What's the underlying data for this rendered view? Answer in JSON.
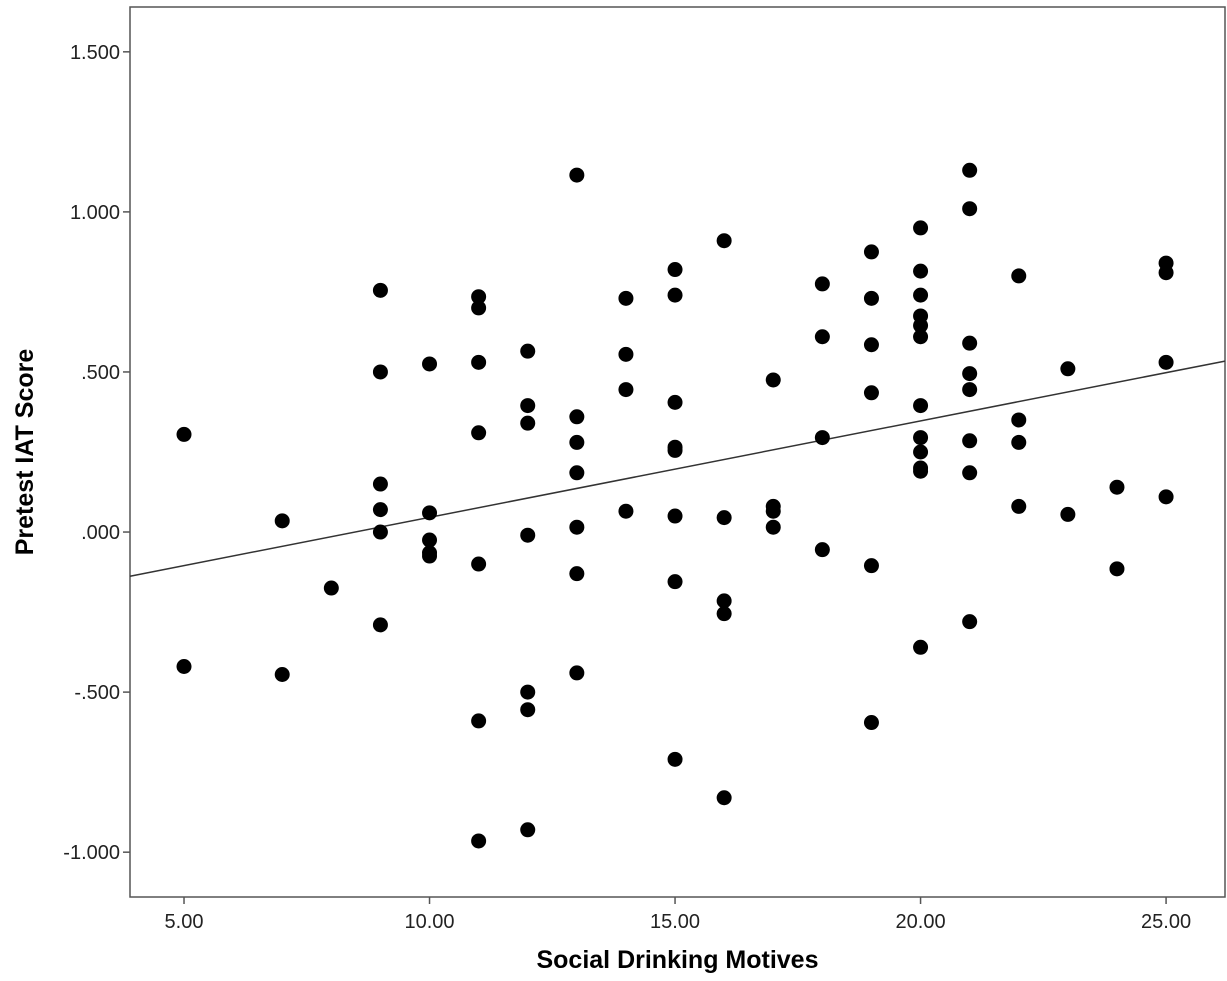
{
  "chart_data": {
    "type": "scatter",
    "title": "",
    "xlabel": "Social Drinking Motives",
    "ylabel": "Pretest IAT Score",
    "xlim": [
      3.9,
      26.2
    ],
    "ylim": [
      -1.14,
      1.64
    ],
    "x_ticks": [
      {
        "value": 5,
        "label": "5.00"
      },
      {
        "value": 10,
        "label": "10.00"
      },
      {
        "value": 15,
        "label": "15.00"
      },
      {
        "value": 20,
        "label": "20.00"
      },
      {
        "value": 25,
        "label": "25.00"
      }
    ],
    "y_ticks": [
      {
        "value": 1.5,
        "label": "1.500"
      },
      {
        "value": 1.0,
        "label": "1.000"
      },
      {
        "value": 0.5,
        "label": ".500"
      },
      {
        "value": 0.0,
        "label": ".000"
      },
      {
        "value": -0.5,
        "label": "-.500"
      },
      {
        "value": -1.0,
        "label": "-1.000"
      }
    ],
    "grid": false,
    "legend": "none",
    "points": [
      [
        5,
        0.305
      ],
      [
        5,
        -0.42
      ],
      [
        7,
        0.035
      ],
      [
        7,
        -0.445
      ],
      [
        8,
        -0.175
      ],
      [
        9,
        0.755
      ],
      [
        9,
        0.5
      ],
      [
        9,
        0.15
      ],
      [
        9,
        0.07
      ],
      [
        9,
        0.0
      ],
      [
        9,
        -0.29
      ],
      [
        10,
        0.525
      ],
      [
        10,
        0.06
      ],
      [
        10,
        -0.025
      ],
      [
        10,
        -0.065
      ],
      [
        10,
        -0.075
      ],
      [
        11,
        0.735
      ],
      [
        11,
        0.7
      ],
      [
        11,
        0.53
      ],
      [
        11,
        0.31
      ],
      [
        11,
        -0.1
      ],
      [
        11,
        -0.59
      ],
      [
        11,
        -0.965
      ],
      [
        12,
        0.565
      ],
      [
        12,
        0.395
      ],
      [
        12,
        0.34
      ],
      [
        12,
        -0.01
      ],
      [
        12,
        -0.5
      ],
      [
        12,
        -0.555
      ],
      [
        12,
        -0.93
      ],
      [
        13,
        1.115
      ],
      [
        13,
        0.36
      ],
      [
        13,
        0.28
      ],
      [
        13,
        0.185
      ],
      [
        13,
        0.015
      ],
      [
        13,
        -0.13
      ],
      [
        13,
        -0.44
      ],
      [
        14,
        0.73
      ],
      [
        14,
        0.555
      ],
      [
        14,
        0.445
      ],
      [
        14,
        0.065
      ],
      [
        15,
        0.82
      ],
      [
        15,
        0.74
      ],
      [
        15,
        0.405
      ],
      [
        15,
        0.265
      ],
      [
        15,
        0.255
      ],
      [
        15,
        0.05
      ],
      [
        15,
        -0.155
      ],
      [
        15,
        -0.71
      ],
      [
        16,
        0.91
      ],
      [
        16,
        0.045
      ],
      [
        16,
        -0.215
      ],
      [
        16,
        -0.255
      ],
      [
        16,
        -0.83
      ],
      [
        17,
        0.475
      ],
      [
        17,
        0.08
      ],
      [
        17,
        0.065
      ],
      [
        17,
        0.015
      ],
      [
        18,
        0.775
      ],
      [
        18,
        0.61
      ],
      [
        18,
        0.295
      ],
      [
        18,
        -0.055
      ],
      [
        19,
        0.875
      ],
      [
        19,
        0.73
      ],
      [
        19,
        0.585
      ],
      [
        19,
        0.435
      ],
      [
        19,
        -0.105
      ],
      [
        19,
        -0.595
      ],
      [
        20,
        0.95
      ],
      [
        20,
        0.815
      ],
      [
        20,
        0.74
      ],
      [
        20,
        0.675
      ],
      [
        20,
        0.645
      ],
      [
        20,
        0.61
      ],
      [
        20,
        0.395
      ],
      [
        20,
        0.295
      ],
      [
        20,
        0.25
      ],
      [
        20,
        0.2
      ],
      [
        20,
        0.19
      ],
      [
        20,
        -0.36
      ],
      [
        21,
        1.13
      ],
      [
        21,
        1.01
      ],
      [
        21,
        0.59
      ],
      [
        21,
        0.495
      ],
      [
        21,
        0.445
      ],
      [
        21,
        0.285
      ],
      [
        21,
        0.185
      ],
      [
        21,
        -0.28
      ],
      [
        22,
        0.8
      ],
      [
        22,
        0.35
      ],
      [
        22,
        0.28
      ],
      [
        22,
        0.08
      ],
      [
        23,
        0.51
      ],
      [
        23,
        0.055
      ],
      [
        24,
        0.14
      ],
      [
        24,
        -0.115
      ],
      [
        25,
        0.84
      ],
      [
        25,
        0.81
      ],
      [
        25,
        0.53
      ],
      [
        25,
        0.11
      ]
    ],
    "fit_line": {
      "x": [
        3.9,
        26.2
      ],
      "y": [
        -0.138,
        0.534
      ]
    }
  }
}
